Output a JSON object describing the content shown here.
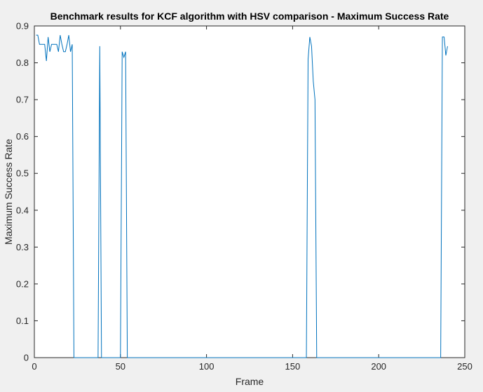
{
  "chart_data": {
    "type": "line",
    "title": "Benchmark results for KCF algorithm with HSV comparison - Maximum Success Rate",
    "xlabel": "Frame",
    "ylabel": "Maximum Success Rate",
    "xlim": [
      0,
      250
    ],
    "ylim": [
      0,
      0.9
    ],
    "xticks": [
      0,
      50,
      100,
      150,
      200,
      250
    ],
    "xtick_labels": [
      "0",
      "50",
      "100",
      "150",
      "200",
      "250"
    ],
    "yticks": [
      0,
      0.1,
      0.2,
      0.3,
      0.4,
      0.5,
      0.6,
      0.7,
      0.8,
      0.9
    ],
    "ytick_labels": [
      "0",
      "0.1",
      "0.2",
      "0.3",
      "0.4",
      "0.5",
      "0.6",
      "0.7",
      "0.8",
      "0.9"
    ],
    "grid": false,
    "legend": "none",
    "line_color": "#0072bd",
    "series": [
      {
        "x": [
          1,
          2,
          3,
          4,
          5,
          6,
          7,
          8,
          9,
          10,
          11,
          12,
          13,
          14,
          15,
          16,
          17,
          18,
          19,
          20,
          21,
          22,
          23,
          24,
          25,
          37,
          38,
          39,
          40,
          50,
          51,
          52,
          53,
          54,
          158,
          159,
          160,
          161,
          162,
          163,
          164,
          165,
          236,
          237,
          238,
          239,
          240
        ],
        "y": [
          0.875,
          0.875,
          0.85,
          0.85,
          0.85,
          0.85,
          0.805,
          0.87,
          0.83,
          0.85,
          0.85,
          0.85,
          0.85,
          0.83,
          0.875,
          0.85,
          0.83,
          0.83,
          0.85,
          0.875,
          0.83,
          0.85,
          0.0,
          0.0,
          0.0,
          0.0,
          0.845,
          0.0,
          0.0,
          0.0,
          0.83,
          0.815,
          0.83,
          0.0,
          0.0,
          0.81,
          0.87,
          0.845,
          0.75,
          0.7,
          0.0,
          0.0,
          0.0,
          0.87,
          0.87,
          0.82,
          0.845
        ]
      }
    ]
  }
}
